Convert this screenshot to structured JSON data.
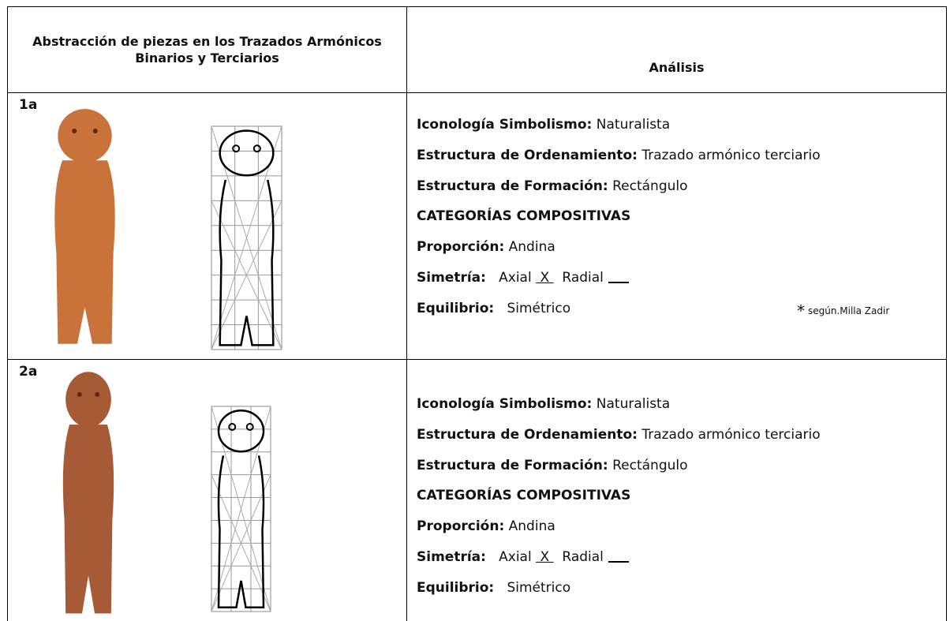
{
  "header": {
    "left": "Abstracción de piezas en los Trazados Armónicos Binarios y Terciarios",
    "right": "Análisis"
  },
  "rows": [
    {
      "id": "1a",
      "lines": [
        {
          "label": "Iconología Simbolismo:",
          "value": "Naturalista"
        },
        {
          "label": "Estructura de Ordenamiento:",
          "value": "Trazado armónico terciario"
        },
        {
          "label": "Estructura de Formación:",
          "value": "Rectángulo"
        },
        {
          "label": "CATEGORÍAS COMPOSITIVAS"
        },
        {
          "label": "Proporción:",
          "value": "Andina"
        }
      ],
      "simetria": {
        "label": "Simetría:",
        "axial": "Axial",
        "mark": "X",
        "radial": "Radial"
      },
      "equilibrio": {
        "label": "Equilibrio:",
        "value": "Simétrico"
      },
      "note": {
        "mark": "*",
        "text": "según.Milla Zadir"
      }
    },
    {
      "id": "2a",
      "lines": [
        {
          "label": "Iconología Simbolismo:",
          "value": "Naturalista"
        },
        {
          "label": "Estructura de Ordenamiento:",
          "value": "Trazado armónico terciario"
        },
        {
          "label": "Estructura de Formación:",
          "value": "Rectángulo"
        },
        {
          "label": "CATEGORÍAS COMPOSITIVAS"
        },
        {
          "label": "Proporción:",
          "value": "Andina"
        }
      ],
      "simetria": {
        "label": "Simetría:",
        "axial": "Axial",
        "mark": "X",
        "radial": "Radial"
      },
      "equilibrio": {
        "label": "Equilibrio:",
        "value": "Simétrico"
      }
    }
  ]
}
